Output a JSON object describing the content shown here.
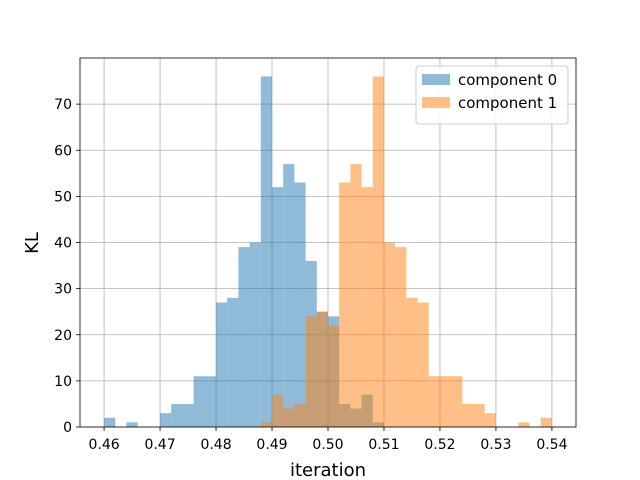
{
  "chart_data": {
    "type": "histogram",
    "title": "",
    "xlabel": "iteration",
    "ylabel": "KL",
    "xlim": [
      0.4557,
      0.5443
    ],
    "ylim": [
      0,
      80
    ],
    "xticks": [
      0.46,
      0.47,
      0.48,
      0.49,
      0.5,
      0.51,
      0.52,
      0.53,
      0.54
    ],
    "xtick_labels": [
      "0.46",
      "0.47",
      "0.48",
      "0.49",
      "0.50",
      "0.51",
      "0.52",
      "0.53",
      "0.54"
    ],
    "yticks": [
      0,
      10,
      20,
      30,
      40,
      50,
      60,
      70
    ],
    "ytick_labels": [
      "0",
      "10",
      "20",
      "30",
      "40",
      "50",
      "60",
      "70"
    ],
    "grid": true,
    "legend_position": "top-right",
    "series": [
      {
        "name": "component 0",
        "color": "#1f77b4",
        "alpha": 0.5,
        "bins": [
          {
            "x0": 0.46,
            "x1": 0.462,
            "count": 2
          },
          {
            "x0": 0.464,
            "x1": 0.466,
            "count": 1
          },
          {
            "x0": 0.47,
            "x1": 0.472,
            "count": 3
          },
          {
            "x0": 0.472,
            "x1": 0.476,
            "count": 5
          },
          {
            "x0": 0.476,
            "x1": 0.48,
            "count": 11
          },
          {
            "x0": 0.48,
            "x1": 0.482,
            "count": 27
          },
          {
            "x0": 0.482,
            "x1": 0.484,
            "count": 28
          },
          {
            "x0": 0.484,
            "x1": 0.486,
            "count": 39
          },
          {
            "x0": 0.486,
            "x1": 0.488,
            "count": 40
          },
          {
            "x0": 0.488,
            "x1": 0.49,
            "count": 76
          },
          {
            "x0": 0.49,
            "x1": 0.492,
            "count": 52
          },
          {
            "x0": 0.492,
            "x1": 0.494,
            "count": 57
          },
          {
            "x0": 0.494,
            "x1": 0.496,
            "count": 53
          },
          {
            "x0": 0.496,
            "x1": 0.498,
            "count": 36
          },
          {
            "x0": 0.498,
            "x1": 0.5,
            "count": 25
          },
          {
            "x0": 0.5,
            "x1": 0.502,
            "count": 24
          },
          {
            "x0": 0.502,
            "x1": 0.504,
            "count": 5
          },
          {
            "x0": 0.504,
            "x1": 0.506,
            "count": 4
          },
          {
            "x0": 0.506,
            "x1": 0.508,
            "count": 7
          },
          {
            "x0": 0.508,
            "x1": 0.51,
            "count": 1
          }
        ]
      },
      {
        "name": "component 1",
        "color": "#ff7f0e",
        "alpha": 0.5,
        "bins": [
          {
            "x0": 0.488,
            "x1": 0.49,
            "count": 1
          },
          {
            "x0": 0.49,
            "x1": 0.492,
            "count": 7
          },
          {
            "x0": 0.492,
            "x1": 0.494,
            "count": 4
          },
          {
            "x0": 0.494,
            "x1": 0.496,
            "count": 5
          },
          {
            "x0": 0.496,
            "x1": 0.498,
            "count": 24
          },
          {
            "x0": 0.498,
            "x1": 0.5,
            "count": 25
          },
          {
            "x0": 0.5,
            "x1": 0.502,
            "count": 22
          },
          {
            "x0": 0.502,
            "x1": 0.504,
            "count": 53
          },
          {
            "x0": 0.504,
            "x1": 0.506,
            "count": 57
          },
          {
            "x0": 0.506,
            "x1": 0.508,
            "count": 52
          },
          {
            "x0": 0.508,
            "x1": 0.51,
            "count": 76
          },
          {
            "x0": 0.51,
            "x1": 0.512,
            "count": 40
          },
          {
            "x0": 0.512,
            "x1": 0.514,
            "count": 39
          },
          {
            "x0": 0.514,
            "x1": 0.516,
            "count": 28
          },
          {
            "x0": 0.516,
            "x1": 0.518,
            "count": 27
          },
          {
            "x0": 0.518,
            "x1": 0.52,
            "count": 11
          },
          {
            "x0": 0.52,
            "x1": 0.524,
            "count": 11
          },
          {
            "x0": 0.524,
            "x1": 0.528,
            "count": 5
          },
          {
            "x0": 0.528,
            "x1": 0.53,
            "count": 3
          },
          {
            "x0": 0.534,
            "x1": 0.536,
            "count": 1
          },
          {
            "x0": 0.538,
            "x1": 0.54,
            "count": 2
          }
        ]
      }
    ]
  }
}
